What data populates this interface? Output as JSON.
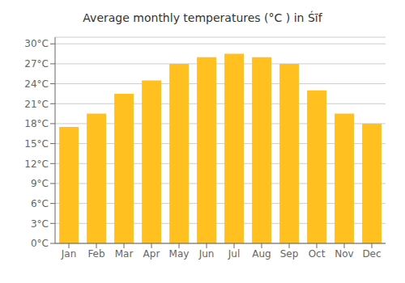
{
  "chart_data": {
    "type": "bar",
    "title": "Average monthly temperatures (°C ) in Śīf",
    "categories": [
      "Jan",
      "Feb",
      "Mar",
      "Apr",
      "May",
      "Jun",
      "Jul",
      "Aug",
      "Sep",
      "Oct",
      "Nov",
      "Dec"
    ],
    "values": [
      17.5,
      19.5,
      22.5,
      24.5,
      27.0,
      28.0,
      28.5,
      28.0,
      27.0,
      23.0,
      19.5,
      18.0
    ],
    "color": "#FFC020",
    "ylim": [
      0,
      31
    ],
    "yticks": [
      {
        "value": 0,
        "label": "0°C"
      },
      {
        "value": 3,
        "label": "3°C"
      },
      {
        "value": 6,
        "label": "6°C"
      },
      {
        "value": 9,
        "label": "9°C"
      },
      {
        "value": 12,
        "label": "12°C"
      },
      {
        "value": 15,
        "label": "15°C"
      },
      {
        "value": 18,
        "label": "18°C"
      },
      {
        "value": 21,
        "label": "21°C"
      },
      {
        "value": 24,
        "label": "24°C"
      },
      {
        "value": 27,
        "label": "27°C"
      },
      {
        "value": 30,
        "label": "30°C"
      }
    ],
    "grid": true
  }
}
